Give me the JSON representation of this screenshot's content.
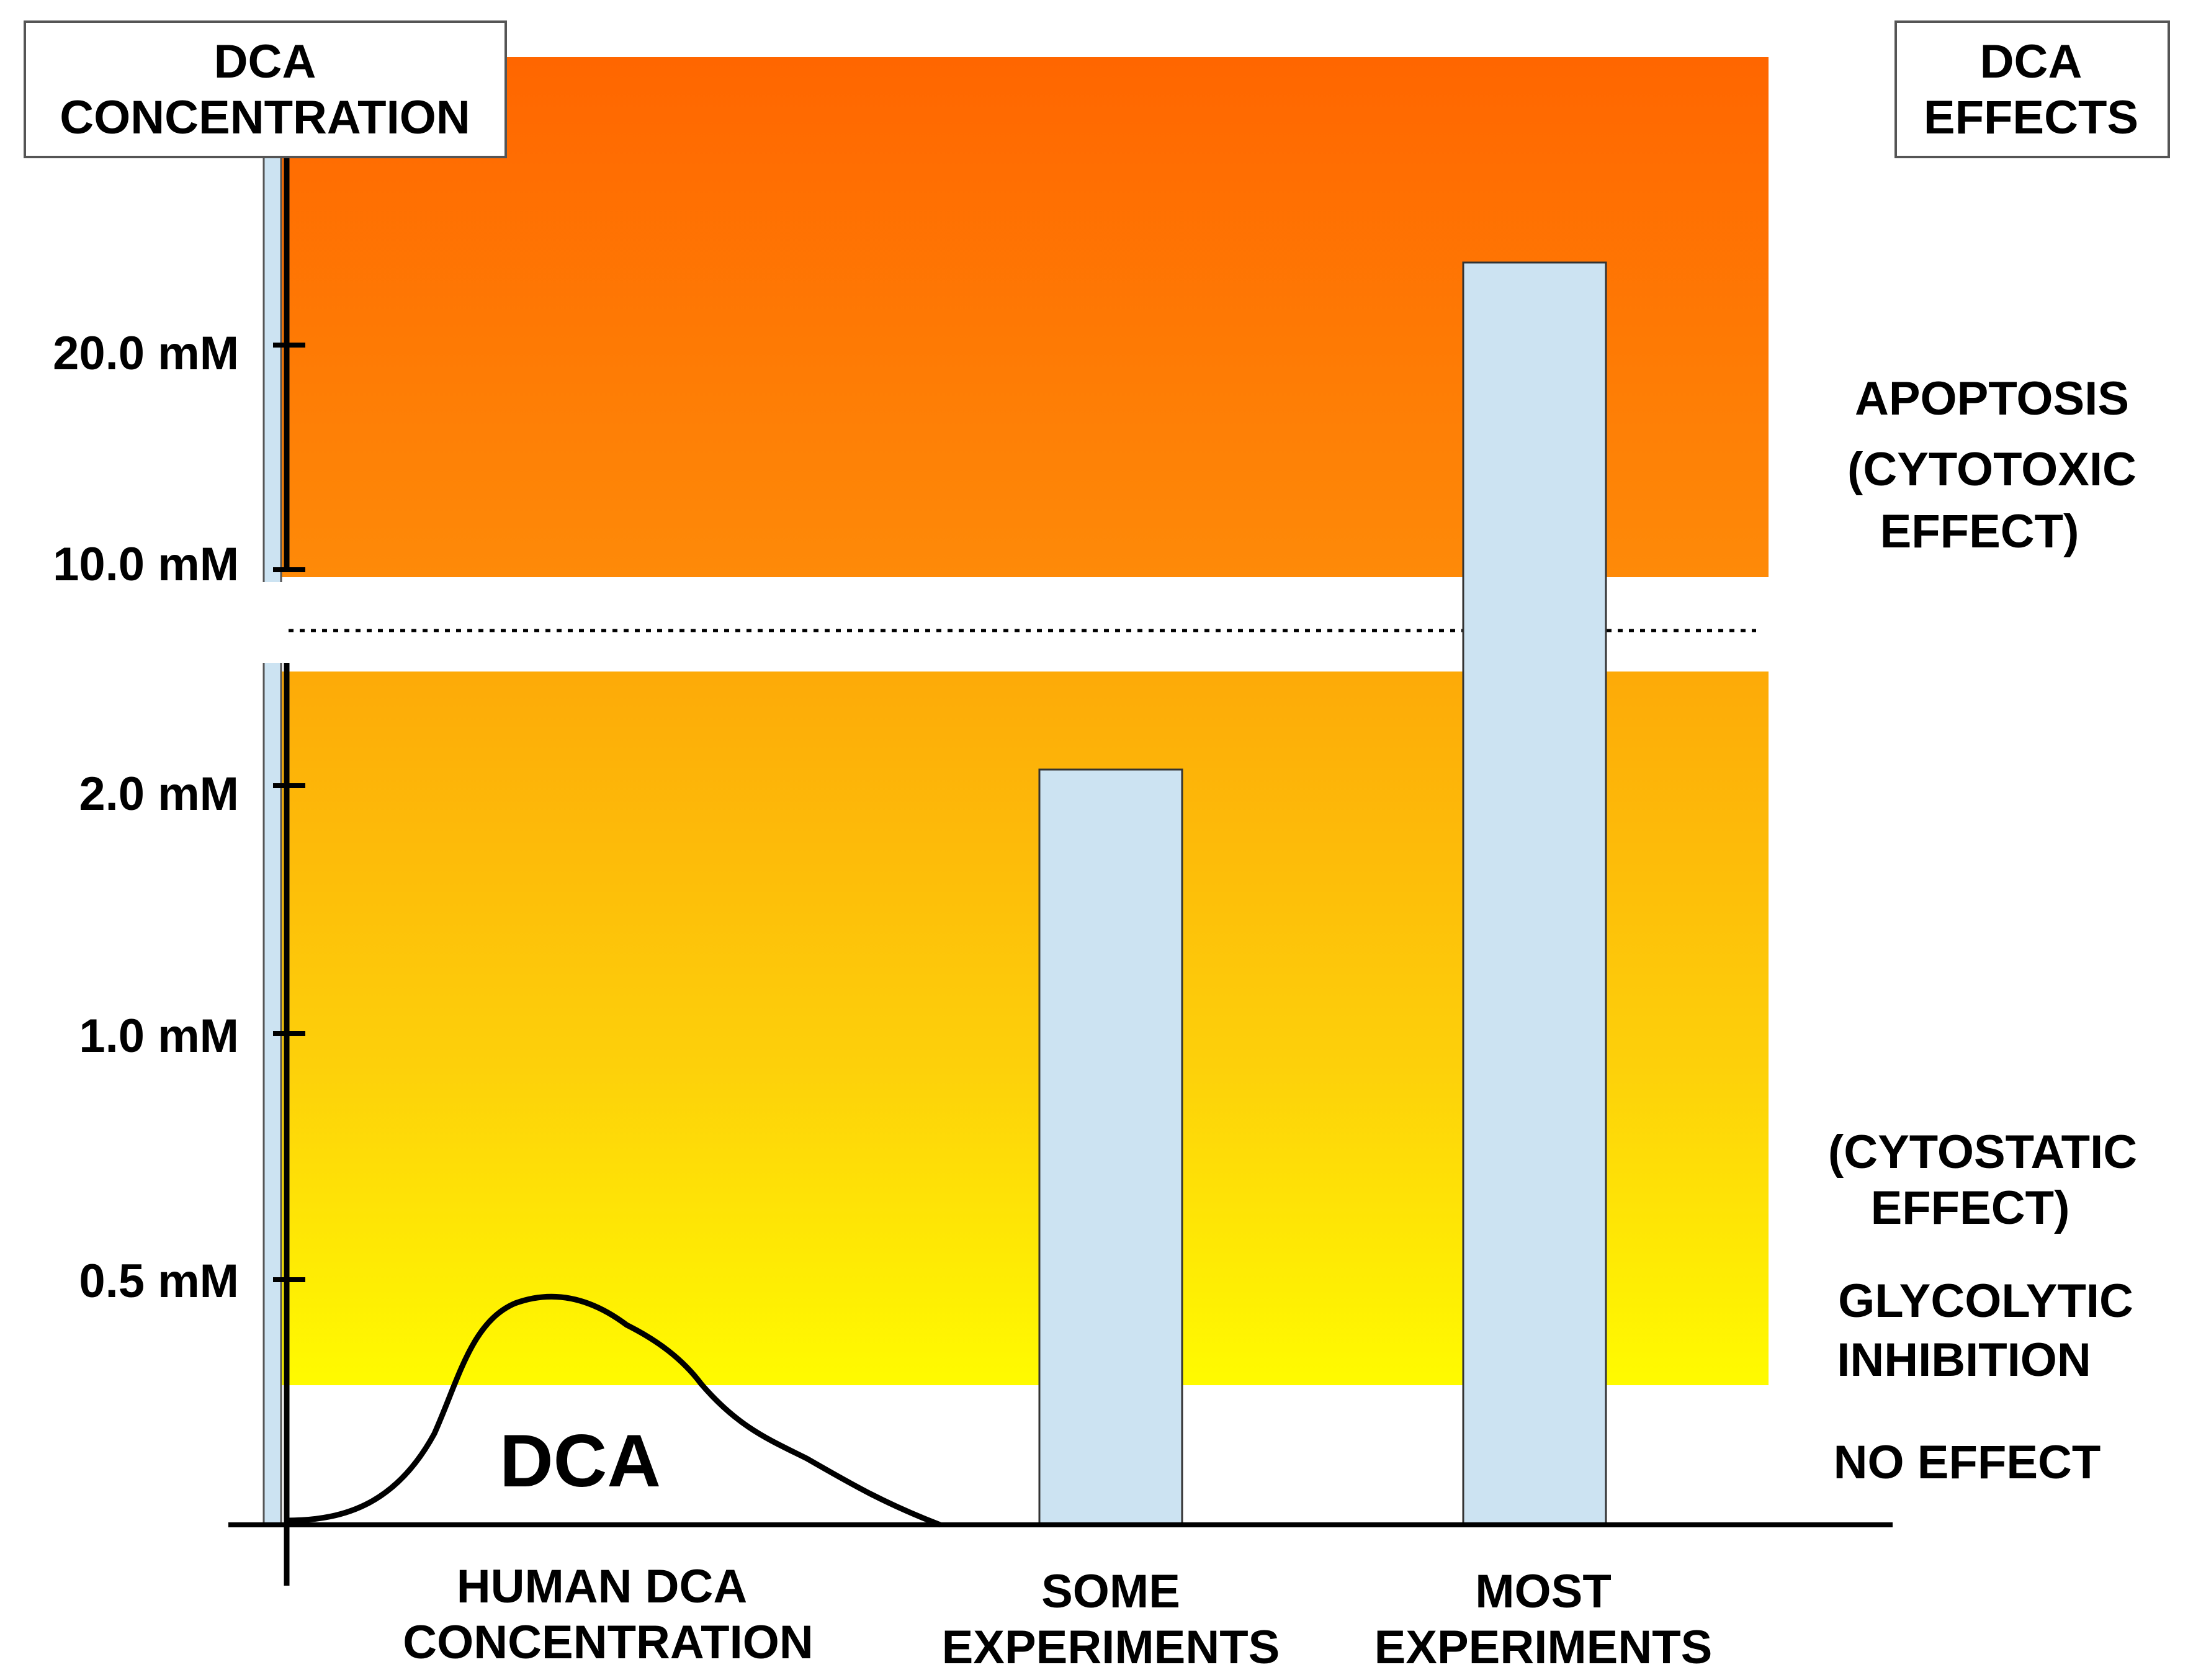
{
  "chart_data": {
    "type": "bar",
    "title": "",
    "y_axis_title": [
      "DCA",
      "CONCENTRATION"
    ],
    "effects_title": [
      "DCA",
      "EFFECTS"
    ],
    "y_ticks": [
      "0.5 mM",
      "1.0 mM",
      "2.0 mM",
      "10.0 mM",
      "20.0 mM"
    ],
    "categories": [
      {
        "key": "human",
        "label": [
          "HUMAN DCA",
          "CONCENTRATION"
        ]
      },
      {
        "key": "some",
        "label": [
          "SOME",
          "EXPERIMENTS"
        ]
      },
      {
        "key": "most",
        "label": [
          "MOST",
          "EXPERIMENTS"
        ]
      }
    ],
    "bars": [
      {
        "category": "SOME EXPERIMENTS",
        "value_mM": 2.2
      },
      {
        "category": "MOST EXPERIMENTS",
        "value_mM": 25
      }
    ],
    "human_curve": {
      "label": "DCA",
      "x": [
        0,
        0.2,
        0.32,
        0.45,
        0.6,
        0.8,
        1.0
      ],
      "y_mM": [
        0,
        0.05,
        0.45,
        0.47,
        0.38,
        0.1,
        0
      ]
    },
    "effect_zones": [
      {
        "name": "NO EFFECT",
        "label": [
          "NO EFFECT"
        ]
      },
      {
        "name": "GLYCOLYTIC INHIBITION",
        "label": [
          "GLYCOLYTIC",
          "INHIBITION"
        ]
      },
      {
        "name": "CYTOSTATIC EFFECT",
        "label": [
          "(CYTOSTATIC",
          "EFFECT)"
        ]
      },
      {
        "name": "APOPTOSIS",
        "label": [
          "APOPTOSIS",
          "(CYTOTOXIC",
          "EFFECT)"
        ]
      }
    ],
    "zone_colors": {
      "top": "#ff6600",
      "middle": "#fbaa0a",
      "bottom": "#fffa00"
    },
    "bar_color": "#cce3f2",
    "axis_break": "between 2.0 mM and 10.0 mM"
  }
}
